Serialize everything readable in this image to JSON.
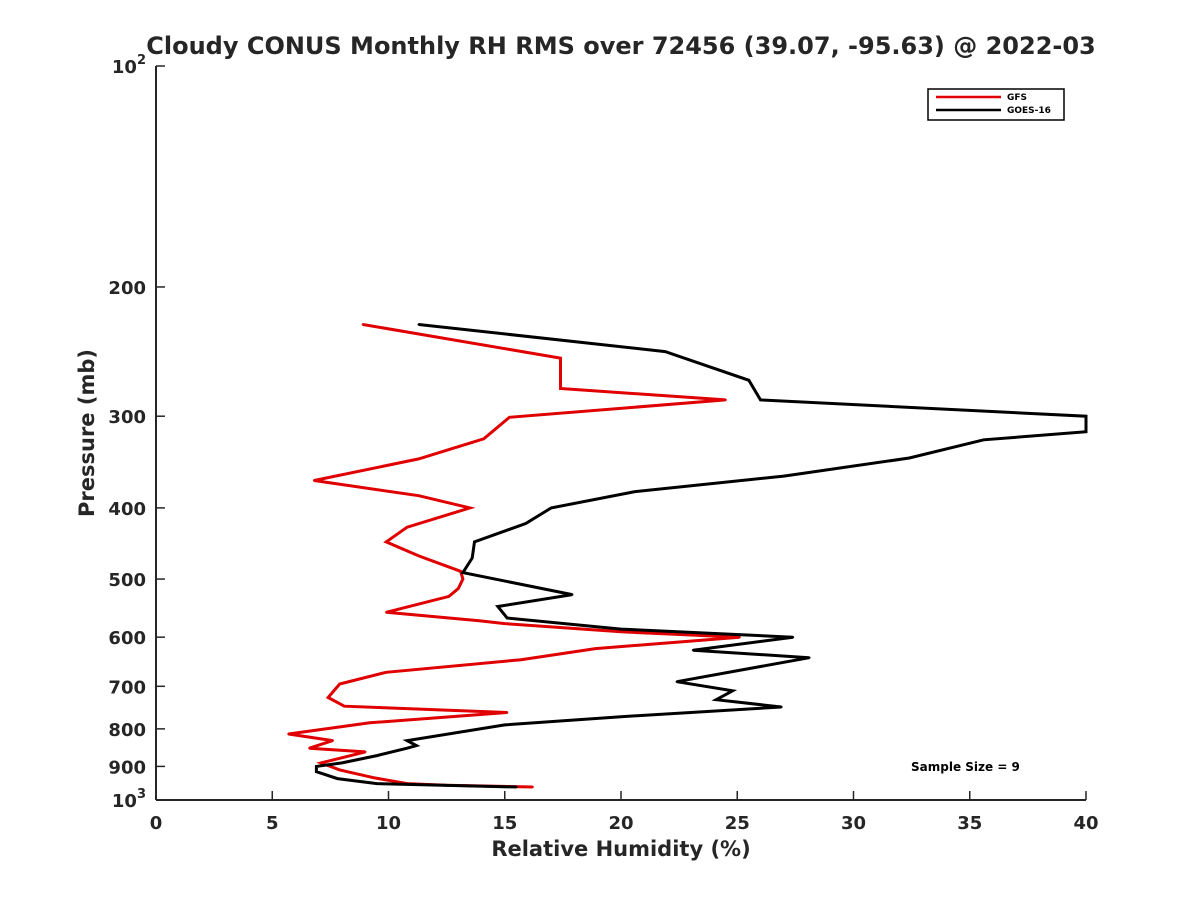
{
  "chart_data": {
    "type": "line",
    "title": "Cloudy CONUS Monthly RH RMS over 72456 (39.07, -95.63) @ 2022-03",
    "xlabel": "Relative Humidity (%)",
    "ylabel": "Pressure (mb)",
    "xlim": [
      0,
      40
    ],
    "ylim": [
      100,
      1000
    ],
    "y_scale": "log",
    "y_reversed": true,
    "x_ticks": [
      0,
      5,
      10,
      15,
      20,
      25,
      30,
      35,
      40
    ],
    "x_tick_labels": [
      "0",
      "5",
      "10",
      "15",
      "20",
      "25",
      "30",
      "35",
      "40"
    ],
    "y_ticks": [
      100,
      200,
      300,
      400,
      500,
      600,
      700,
      800,
      900,
      1000
    ],
    "y_tick_labels": [
      {
        "base": "10",
        "exp": "2"
      },
      {
        "base": "200",
        "exp": ""
      },
      {
        "base": "300",
        "exp": ""
      },
      {
        "base": "400",
        "exp": ""
      },
      {
        "base": "500",
        "exp": ""
      },
      {
        "base": "600",
        "exp": ""
      },
      {
        "base": "700",
        "exp": ""
      },
      {
        "base": "800",
        "exp": ""
      },
      {
        "base": "900",
        "exp": ""
      },
      {
        "base": "10",
        "exp": "3"
      }
    ],
    "legend_position": "top-right",
    "annotation": "Sample Size = 9",
    "series": [
      {
        "name": "GFS",
        "color": "#e00000",
        "points": [
          [
            8.9,
            225
          ],
          [
            17.4,
            250
          ],
          [
            17.4,
            275
          ],
          [
            24.5,
            285
          ],
          [
            15.2,
            301
          ],
          [
            14.1,
            322
          ],
          [
            11.3,
            343
          ],
          [
            6.8,
            367
          ],
          [
            11.3,
            385
          ],
          [
            13.5,
            400
          ],
          [
            10.8,
            425
          ],
          [
            9.9,
            445
          ],
          [
            11.3,
            465
          ],
          [
            13.1,
            488
          ],
          [
            13.2,
            500
          ],
          [
            13.0,
            515
          ],
          [
            12.6,
            528
          ],
          [
            9.9,
            555
          ],
          [
            13.9,
            570
          ],
          [
            15.0,
            575
          ],
          [
            20.0,
            590
          ],
          [
            25.1,
            600
          ],
          [
            18.9,
            622
          ],
          [
            15.7,
            644
          ],
          [
            9.9,
            670
          ],
          [
            7.9,
            695
          ],
          [
            7.4,
            725
          ],
          [
            8.1,
            745
          ],
          [
            15.1,
            760
          ],
          [
            9.2,
            785
          ],
          [
            5.7,
            813
          ],
          [
            7.6,
            830
          ],
          [
            6.6,
            850
          ],
          [
            9.0,
            860
          ],
          [
            7.1,
            890
          ],
          [
            7.9,
            910
          ],
          [
            9.4,
            933
          ],
          [
            10.8,
            950
          ],
          [
            12.5,
            955
          ],
          [
            16.2,
            960
          ]
        ]
      },
      {
        "name": "GOES-16",
        "color": "#000000",
        "points": [
          [
            11.3,
            225
          ],
          [
            21.9,
            245
          ],
          [
            25.5,
            268
          ],
          [
            26.0,
            285
          ],
          [
            40.0,
            300
          ],
          [
            40.0,
            315
          ],
          [
            35.6,
            323
          ],
          [
            32.4,
            342
          ],
          [
            27.0,
            362
          ],
          [
            20.6,
            380
          ],
          [
            17.0,
            400
          ],
          [
            15.9,
            420
          ],
          [
            13.7,
            445
          ],
          [
            13.6,
            468
          ],
          [
            13.2,
            490
          ],
          [
            17.9,
            525
          ],
          [
            14.7,
            545
          ],
          [
            15.1,
            565
          ],
          [
            20.0,
            585
          ],
          [
            27.4,
            600
          ],
          [
            23.1,
            625
          ],
          [
            28.1,
            640
          ],
          [
            22.4,
            690
          ],
          [
            24.8,
            710
          ],
          [
            24.1,
            730
          ],
          [
            26.9,
            747
          ],
          [
            20.0,
            770
          ],
          [
            15.0,
            790
          ],
          [
            10.8,
            830
          ],
          [
            11.2,
            843
          ],
          [
            10.8,
            850
          ],
          [
            9.5,
            870
          ],
          [
            8.0,
            890
          ],
          [
            6.9,
            900
          ],
          [
            6.9,
            915
          ],
          [
            7.8,
            935
          ],
          [
            9.5,
            950
          ],
          [
            15.5,
            960
          ]
        ]
      }
    ]
  }
}
